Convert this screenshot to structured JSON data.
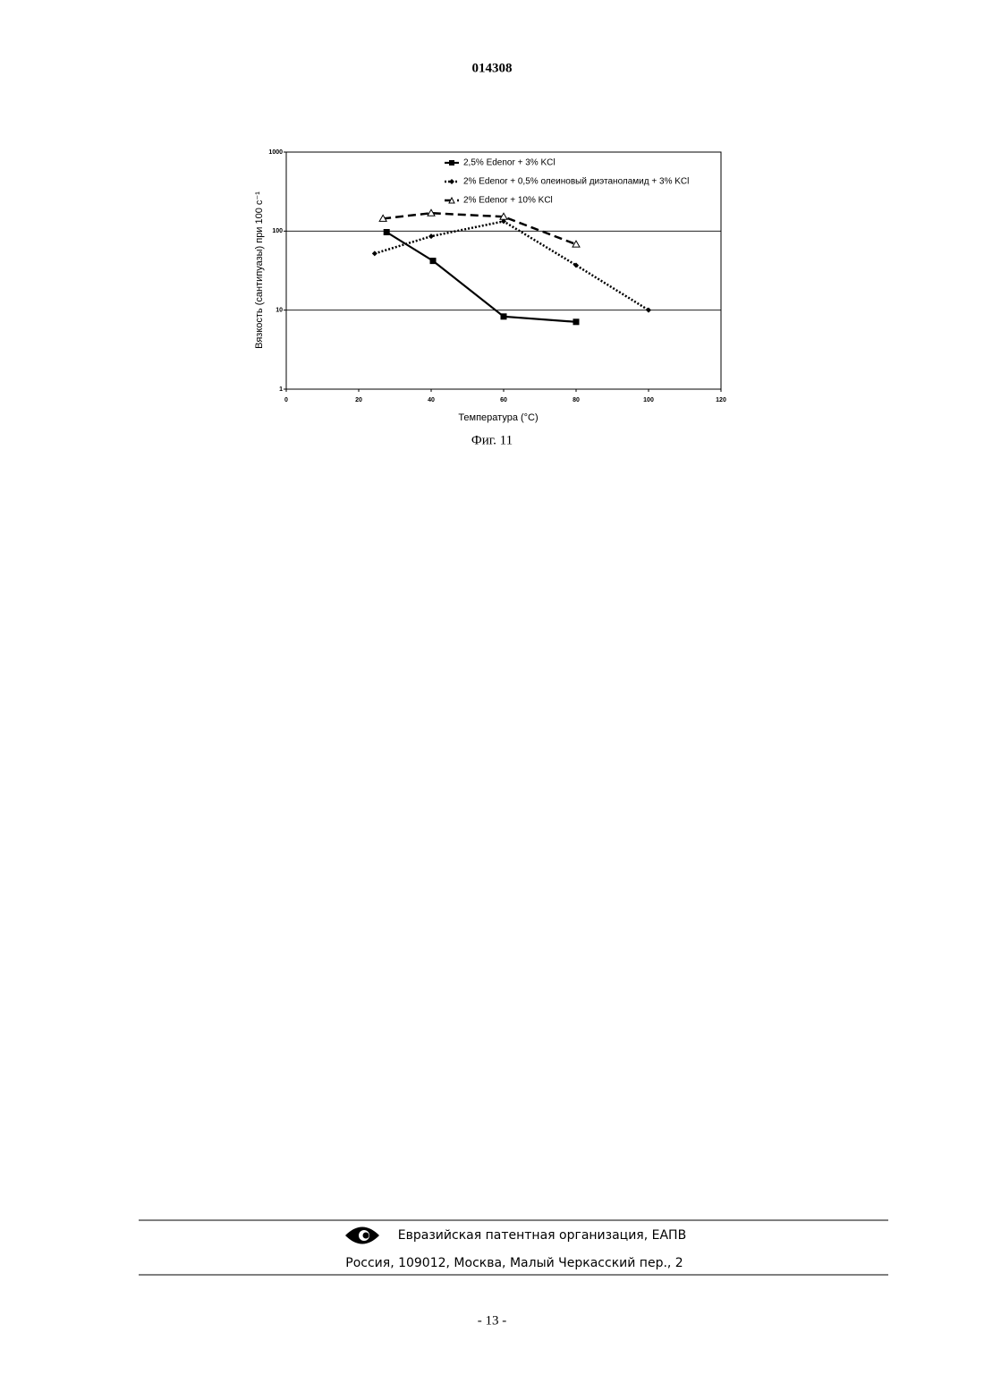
{
  "header": {
    "number": "014308"
  },
  "chart_data": {
    "type": "line",
    "x_label": "Температура (°C)",
    "y_label": "Вязкость (сантипуазы) при 100 с⁻¹",
    "xlim": [
      0,
      120
    ],
    "xticks": [
      0,
      20,
      40,
      60,
      80,
      100,
      120
    ],
    "ylim": [
      1,
      1000
    ],
    "yticks": [
      1,
      10,
      100,
      1000
    ],
    "y_log": true,
    "grid": true,
    "series": [
      {
        "name": "2,5% Edenor + 3% KCl",
        "color": "#000000",
        "marker": "square",
        "dash": "solid",
        "x": [
          27.7,
          40.5,
          60,
          80
        ],
        "values": [
          97,
          42,
          8.3,
          7.1
        ]
      },
      {
        "name": "2% Edenor + 0,5% олеиновый диэтаноламид + 3% KCl",
        "color": "#000000",
        "marker": "diamond",
        "dash": "dotted",
        "x": [
          24.4,
          40,
          60,
          80,
          100
        ],
        "values": [
          52,
          86,
          133,
          37,
          10
        ]
      },
      {
        "name": "2% Edenor + 10% KCl",
        "color": "#000000",
        "marker": "triangle",
        "dash": "dashed",
        "x": [
          26.7,
          40,
          60,
          80
        ],
        "values": [
          144,
          169,
          152,
          68
        ]
      }
    ]
  },
  "caption": "Фиг. 11",
  "footer": {
    "line1": "Евразийская патентная организация, ЕАПВ",
    "line2": "Россия, 109012, Москва, Малый Черкасский пер., 2"
  },
  "page_number": "- 13 -"
}
